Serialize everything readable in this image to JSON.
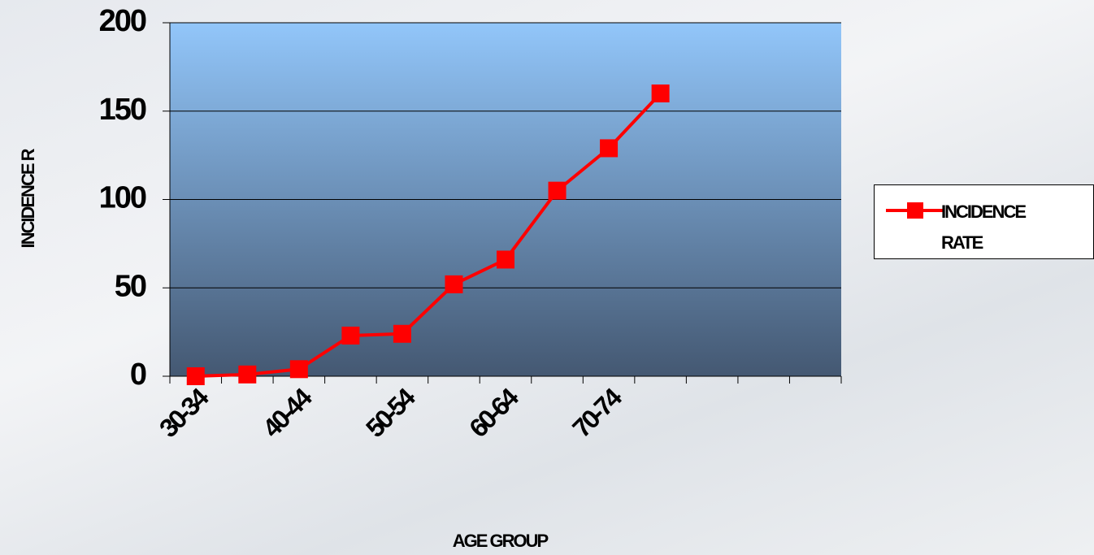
{
  "chart_data": {
    "type": "line",
    "x_label": "AGE GROUP",
    "y_label": "INCIDENCE R",
    "categories": [
      "30-34",
      null,
      "40-44",
      null,
      "50-54",
      null,
      "60-64",
      null,
      "70-74",
      null,
      null,
      null,
      null
    ],
    "series": [
      {
        "name": "INCIDENCE RATE",
        "color": "#ff0000",
        "values": [
          0,
          1,
          4,
          23,
          24,
          52,
          66,
          105,
          129,
          160,
          null,
          null,
          null
        ]
      }
    ],
    "ylim": [
      0,
      200
    ],
    "yticks": [
      0,
      50,
      100,
      150,
      200
    ],
    "grid": true,
    "legend": "right"
  }
}
